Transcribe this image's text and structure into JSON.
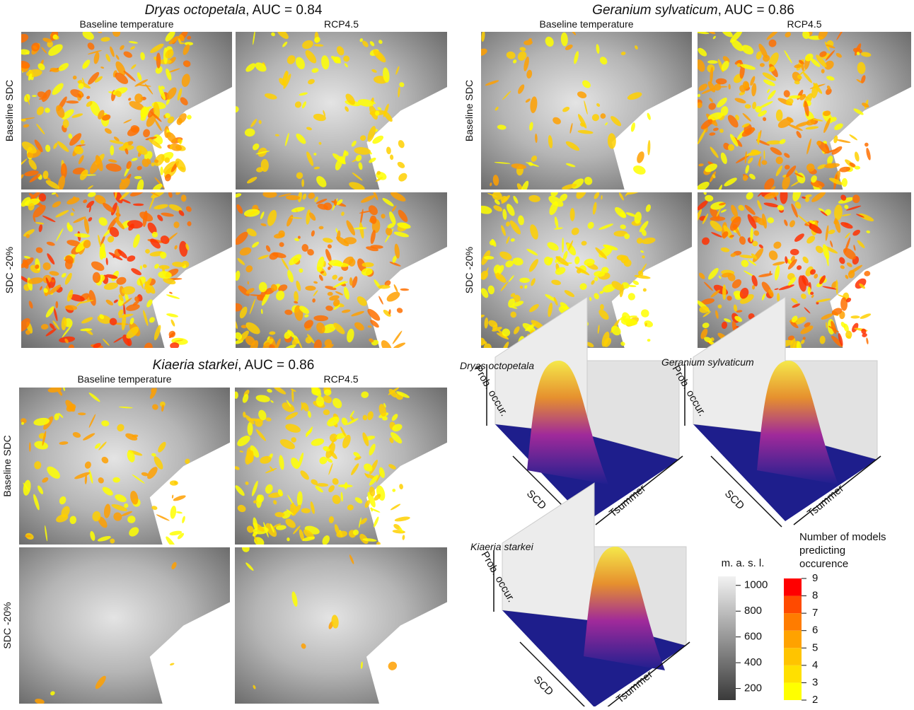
{
  "map_panels": [
    {
      "species": "Dryas octopetala",
      "title_rest": ", AUC = 0.84",
      "columns": [
        "Baseline temperature",
        "RCP4.5"
      ],
      "rows": [
        "Baseline SDC",
        "SDC -20%"
      ]
    },
    {
      "species": "Geranium sylvaticum",
      "title_rest": ", AUC = 0.86",
      "columns": [
        "Baseline temperature",
        "RCP4.5"
      ],
      "rows": [
        "Baseline SDC",
        "SDC -20%"
      ]
    },
    {
      "species": "Kiaeria starkei",
      "title_rest": ", AUC = 0.86",
      "columns": [
        "Baseline temperature",
        "RCP4.5"
      ],
      "rows": [
        "Baseline SDC",
        "SDC -20%"
      ]
    }
  ],
  "surfaces": [
    {
      "species": "Dryas octopetala",
      "z_label": "Prob. occur.",
      "x_label": "SCD",
      "y_label": "Tsummer"
    },
    {
      "species": "Geranium sylvaticum",
      "z_label": "Prob. occur.",
      "x_label": "SCD",
      "y_label": "Tsummer"
    },
    {
      "species": "Kiaeria starkei",
      "z_label": "Prob. occur.",
      "x_label": "SCD",
      "y_label": "Tsummer"
    }
  ],
  "elevation_legend": {
    "title": "m. a. s. l.",
    "lim": [
      110,
      1070
    ],
    "ticks": [
      200,
      400,
      600,
      800,
      1000
    ]
  },
  "models_legend": {
    "title": [
      "Number of models",
      "predicting",
      "occurence"
    ],
    "lim": [
      2,
      9
    ],
    "ticks": [
      2,
      3,
      4,
      5,
      6,
      7,
      8,
      9
    ],
    "colors": [
      "#ffff00",
      "#ffe000",
      "#ffc400",
      "#ffa200",
      "#ff7c00",
      "#ff4a00",
      "#ff0000"
    ]
  }
}
